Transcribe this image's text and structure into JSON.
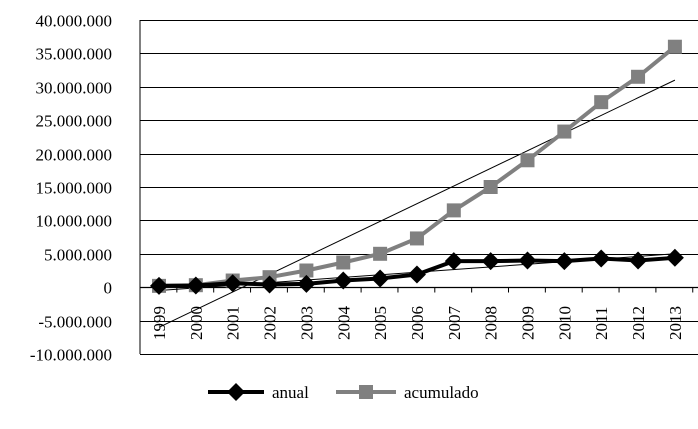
{
  "chart_data": {
    "type": "line",
    "title": "",
    "xlabel": "",
    "ylabel": "",
    "categories": [
      "1999",
      "2000",
      "2001",
      "2002",
      "2003",
      "2004",
      "2005",
      "2006",
      "2007",
      "2008",
      "2009",
      "2010",
      "2011",
      "2012",
      "2013"
    ],
    "ylim": [
      -10000000,
      40000000
    ],
    "y_ticks": [
      40000000,
      35000000,
      30000000,
      25000000,
      20000000,
      15000000,
      10000000,
      5000000,
      0,
      -5000000,
      -10000000
    ],
    "y_tick_labels": [
      "40.000.000",
      "35.000.000",
      "30.000.000",
      "25.000.000",
      "20.000.000",
      "15.000.000",
      "10.000.000",
      "5.000.000",
      "0",
      "-5.000.000",
      "-10.000.000"
    ],
    "grid": "horizontal",
    "legend_position": "bottom",
    "series": [
      {
        "name": "anual",
        "color": "#000000",
        "marker": "diamond",
        "values": [
          200000,
          250000,
          600000,
          400000,
          500000,
          1000000,
          1300000,
          1900000,
          3900000,
          3900000,
          4000000,
          3900000,
          4300000,
          4000000,
          4400000
        ]
      },
      {
        "name": "acumulado",
        "color": "#808080",
        "marker": "square",
        "values": [
          200000,
          300000,
          1000000,
          1500000,
          2500000,
          3700000,
          5000000,
          7300000,
          11500000,
          15000000,
          19000000,
          23300000,
          27700000,
          31500000,
          36000000
        ]
      }
    ],
    "trendlines": [
      {
        "of": "acumulado",
        "color": "#000000",
        "start": -6000000,
        "end": 31000000
      },
      {
        "of": "anual",
        "color": "#000000",
        "start": -500000,
        "end": 5000000
      }
    ]
  }
}
